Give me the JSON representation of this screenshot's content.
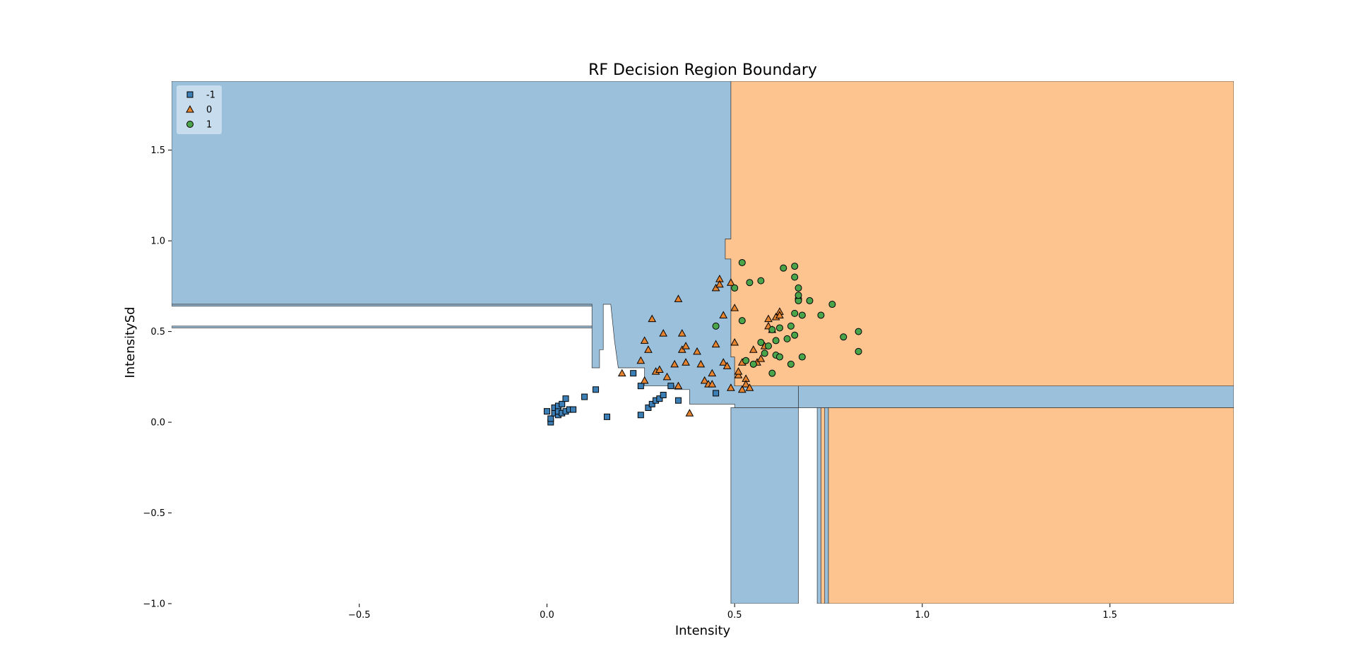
{
  "chart_data": {
    "type": "scatter",
    "title": "RF Decision Region Boundary",
    "xlabel": "Intensity",
    "ylabel": "IntensitySd",
    "xlim": [
      -1.0,
      1.83
    ],
    "ylim": [
      -1.0,
      1.88
    ],
    "xticks": [
      -0.5,
      0.0,
      0.5,
      1.0,
      1.5
    ],
    "yticks": [
      -1.0,
      -0.5,
      0.0,
      0.5,
      1.0,
      1.5
    ],
    "xtick_labels": [
      "−0.5",
      "0.0",
      "0.5",
      "1.0",
      "1.5"
    ],
    "ytick_labels": [
      "−1.0",
      "−0.5",
      "0.0",
      "0.5",
      "1.0",
      "1.5"
    ],
    "legend": {
      "placement": "top-left",
      "entries": [
        "-1",
        "0",
        "1"
      ]
    },
    "colors": {
      "class_-1_point": "#3b7fb6",
      "class_0_point": "#e6832e",
      "class_1_point": "#4aa54a",
      "region_-1": "#9ac0dc",
      "region_0": "#fec490"
    },
    "decision_regions": {
      "class_-1": [
        [
          [
            -1.0,
            1.88
          ],
          [
            0.49,
            1.88
          ],
          [
            0.49,
            1.01
          ],
          [
            0.475,
            1.01
          ],
          [
            0.475,
            0.9
          ],
          [
            0.49,
            0.9
          ],
          [
            0.49,
            0.36
          ],
          [
            0.5,
            0.36
          ],
          [
            0.5,
            0.2
          ],
          [
            0.67,
            0.2
          ],
          [
            0.67,
            0.08
          ],
          [
            0.5,
            0.08
          ],
          [
            0.5,
            0.1
          ],
          [
            0.38,
            0.1
          ],
          [
            0.38,
            0.18
          ],
          [
            0.34,
            0.18
          ],
          [
            0.34,
            0.2
          ],
          [
            0.26,
            0.2
          ],
          [
            0.26,
            0.3
          ],
          [
            0.19,
            0.3
          ],
          [
            0.18,
            0.45
          ],
          [
            0.17,
            0.65
          ],
          [
            0.15,
            0.65
          ],
          [
            0.15,
            0.4
          ],
          [
            0.14,
            0.4
          ],
          [
            0.14,
            0.3
          ],
          [
            0.12,
            0.3
          ],
          [
            0.12,
            0.65
          ],
          [
            -1.0,
            0.65
          ]
        ],
        [
          [
            -1.0,
            0.65
          ],
          [
            0.12,
            0.65
          ],
          [
            0.12,
            0.64
          ],
          [
            -1.0,
            0.64
          ]
        ],
        [
          [
            -1.0,
            0.53
          ],
          [
            0.12,
            0.53
          ],
          [
            0.12,
            0.52
          ],
          [
            -1.0,
            0.52
          ]
        ],
        [
          [
            0.49,
            0.08
          ],
          [
            0.67,
            0.08
          ],
          [
            0.67,
            -1.0
          ],
          [
            0.49,
            -1.0
          ]
        ],
        [
          [
            0.67,
            0.2
          ],
          [
            1.83,
            0.2
          ],
          [
            1.83,
            0.08
          ],
          [
            0.67,
            0.08
          ]
        ],
        [
          [
            0.72,
            0.08
          ],
          [
            0.73,
            0.08
          ],
          [
            0.73,
            -1.0
          ],
          [
            0.72,
            -1.0
          ]
        ],
        [
          [
            0.74,
            0.08
          ],
          [
            0.75,
            0.08
          ],
          [
            0.75,
            -1.0
          ],
          [
            0.74,
            -1.0
          ]
        ]
      ],
      "class_0": [
        [
          [
            0.49,
            1.88
          ],
          [
            1.83,
            1.88
          ],
          [
            1.83,
            0.2
          ],
          [
            0.67,
            0.2
          ],
          [
            0.67,
            0.2
          ],
          [
            0.5,
            0.2
          ],
          [
            0.5,
            0.36
          ],
          [
            0.49,
            0.36
          ],
          [
            0.49,
            0.9
          ],
          [
            0.475,
            0.9
          ],
          [
            0.475,
            1.01
          ],
          [
            0.49,
            1.01
          ]
        ],
        [
          [
            0.75,
            0.08
          ],
          [
            1.83,
            0.08
          ],
          [
            1.83,
            -1.0
          ],
          [
            0.75,
            -1.0
          ]
        ],
        [
          [
            0.73,
            0.08
          ],
          [
            0.74,
            0.08
          ],
          [
            0.74,
            -1.0
          ],
          [
            0.73,
            -1.0
          ]
        ]
      ]
    },
    "series": [
      {
        "name": "-1",
        "marker": "square",
        "points": [
          [
            0.0,
            0.06
          ],
          [
            0.01,
            0.0
          ],
          [
            0.01,
            0.02
          ],
          [
            0.02,
            0.05
          ],
          [
            0.02,
            0.08
          ],
          [
            0.03,
            0.04
          ],
          [
            0.03,
            0.06
          ],
          [
            0.03,
            0.09
          ],
          [
            0.04,
            0.05
          ],
          [
            0.04,
            0.1
          ],
          [
            0.05,
            0.06
          ],
          [
            0.05,
            0.13
          ],
          [
            0.06,
            0.07
          ],
          [
            0.07,
            0.07
          ],
          [
            0.1,
            0.14
          ],
          [
            0.13,
            0.18
          ],
          [
            0.16,
            0.03
          ],
          [
            0.23,
            0.27
          ],
          [
            0.25,
            0.04
          ],
          [
            0.25,
            0.2
          ],
          [
            0.27,
            0.08
          ],
          [
            0.28,
            0.1
          ],
          [
            0.29,
            0.12
          ],
          [
            0.3,
            0.13
          ],
          [
            0.31,
            0.15
          ],
          [
            0.33,
            0.2
          ],
          [
            0.35,
            0.12
          ],
          [
            0.45,
            0.16
          ]
        ]
      },
      {
        "name": "0",
        "marker": "triangle",
        "points": [
          [
            0.2,
            0.27
          ],
          [
            0.25,
            0.34
          ],
          [
            0.26,
            0.45
          ],
          [
            0.26,
            0.23
          ],
          [
            0.27,
            0.4
          ],
          [
            0.28,
            0.57
          ],
          [
            0.29,
            0.28
          ],
          [
            0.3,
            0.29
          ],
          [
            0.31,
            0.49
          ],
          [
            0.32,
            0.25
          ],
          [
            0.34,
            0.32
          ],
          [
            0.35,
            0.68
          ],
          [
            0.35,
            0.2
          ],
          [
            0.36,
            0.49
          ],
          [
            0.36,
            0.4
          ],
          [
            0.37,
            0.33
          ],
          [
            0.37,
            0.42
          ],
          [
            0.38,
            0.05
          ],
          [
            0.4,
            0.39
          ],
          [
            0.41,
            0.32
          ],
          [
            0.42,
            0.23
          ],
          [
            0.43,
            0.21
          ],
          [
            0.44,
            0.27
          ],
          [
            0.44,
            0.21
          ],
          [
            0.45,
            0.43
          ],
          [
            0.45,
            0.74
          ],
          [
            0.46,
            0.79
          ],
          [
            0.46,
            0.76
          ],
          [
            0.47,
            0.59
          ],
          [
            0.47,
            0.33
          ],
          [
            0.48,
            0.31
          ],
          [
            0.49,
            0.77
          ],
          [
            0.49,
            0.19
          ],
          [
            0.5,
            0.44
          ],
          [
            0.5,
            0.63
          ],
          [
            0.51,
            0.26
          ],
          [
            0.51,
            0.28
          ],
          [
            0.52,
            0.33
          ],
          [
            0.52,
            0.18
          ],
          [
            0.53,
            0.24
          ],
          [
            0.53,
            0.21
          ],
          [
            0.54,
            0.19
          ],
          [
            0.55,
            0.4
          ],
          [
            0.56,
            0.33
          ],
          [
            0.57,
            0.35
          ],
          [
            0.58,
            0.42
          ],
          [
            0.59,
            0.53
          ],
          [
            0.59,
            0.57
          ],
          [
            0.6,
            0.51
          ],
          [
            0.61,
            0.58
          ],
          [
            0.62,
            0.61
          ],
          [
            0.62,
            0.59
          ]
        ]
      },
      {
        "name": "1",
        "marker": "circle",
        "points": [
          [
            0.45,
            0.53
          ],
          [
            0.5,
            0.74
          ],
          [
            0.52,
            0.88
          ],
          [
            0.52,
            0.56
          ],
          [
            0.53,
            0.34
          ],
          [
            0.54,
            0.77
          ],
          [
            0.55,
            0.32
          ],
          [
            0.57,
            0.78
          ],
          [
            0.57,
            0.44
          ],
          [
            0.58,
            0.38
          ],
          [
            0.59,
            0.42
          ],
          [
            0.6,
            0.27
          ],
          [
            0.6,
            0.51
          ],
          [
            0.61,
            0.45
          ],
          [
            0.61,
            0.37
          ],
          [
            0.62,
            0.36
          ],
          [
            0.62,
            0.52
          ],
          [
            0.63,
            0.85
          ],
          [
            0.64,
            0.46
          ],
          [
            0.65,
            0.53
          ],
          [
            0.65,
            0.32
          ],
          [
            0.66,
            0.86
          ],
          [
            0.66,
            0.6
          ],
          [
            0.66,
            0.48
          ],
          [
            0.66,
            0.8
          ],
          [
            0.67,
            0.68
          ],
          [
            0.67,
            0.67
          ],
          [
            0.67,
            0.7
          ],
          [
            0.67,
            0.74
          ],
          [
            0.68,
            0.59
          ],
          [
            0.68,
            0.36
          ],
          [
            0.7,
            0.67
          ],
          [
            0.73,
            0.59
          ],
          [
            0.76,
            0.65
          ],
          [
            0.79,
            0.47
          ],
          [
            0.83,
            0.5
          ],
          [
            0.83,
            0.39
          ]
        ]
      }
    ]
  }
}
